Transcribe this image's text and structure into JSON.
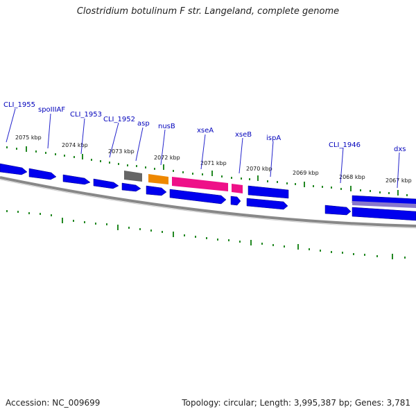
{
  "title": "Clostridium botulinum F str. Langeland, complete genome",
  "footer": {
    "accession": "Accession: NC_009699",
    "summary": "Topology: circular; Length: 3,995,387 bp; Genes: 3,781"
  },
  "colors": {
    "cds": "#0000ee",
    "rna_grey": "#666666",
    "orange": "#ee8800",
    "magenta": "#ee1188",
    "backbone": "#888888",
    "tick": "#228822",
    "label": "#0000bb"
  },
  "kbp_labels": [
    "2075 kbp",
    "2074 kbp",
    "2073 kbp",
    "2072 kbp",
    "2071 kbp",
    "2070 kbp",
    "2069 kbp",
    "2068 kbp",
    "2067 kbp"
  ],
  "gene_labels": [
    "CLI_1955",
    "spoIIIAF",
    "CLI_1953",
    "CLI_1952",
    "asp",
    "nusB",
    "xseA",
    "xseB",
    "ispA",
    "CLI_1946",
    "dxs"
  ]
}
